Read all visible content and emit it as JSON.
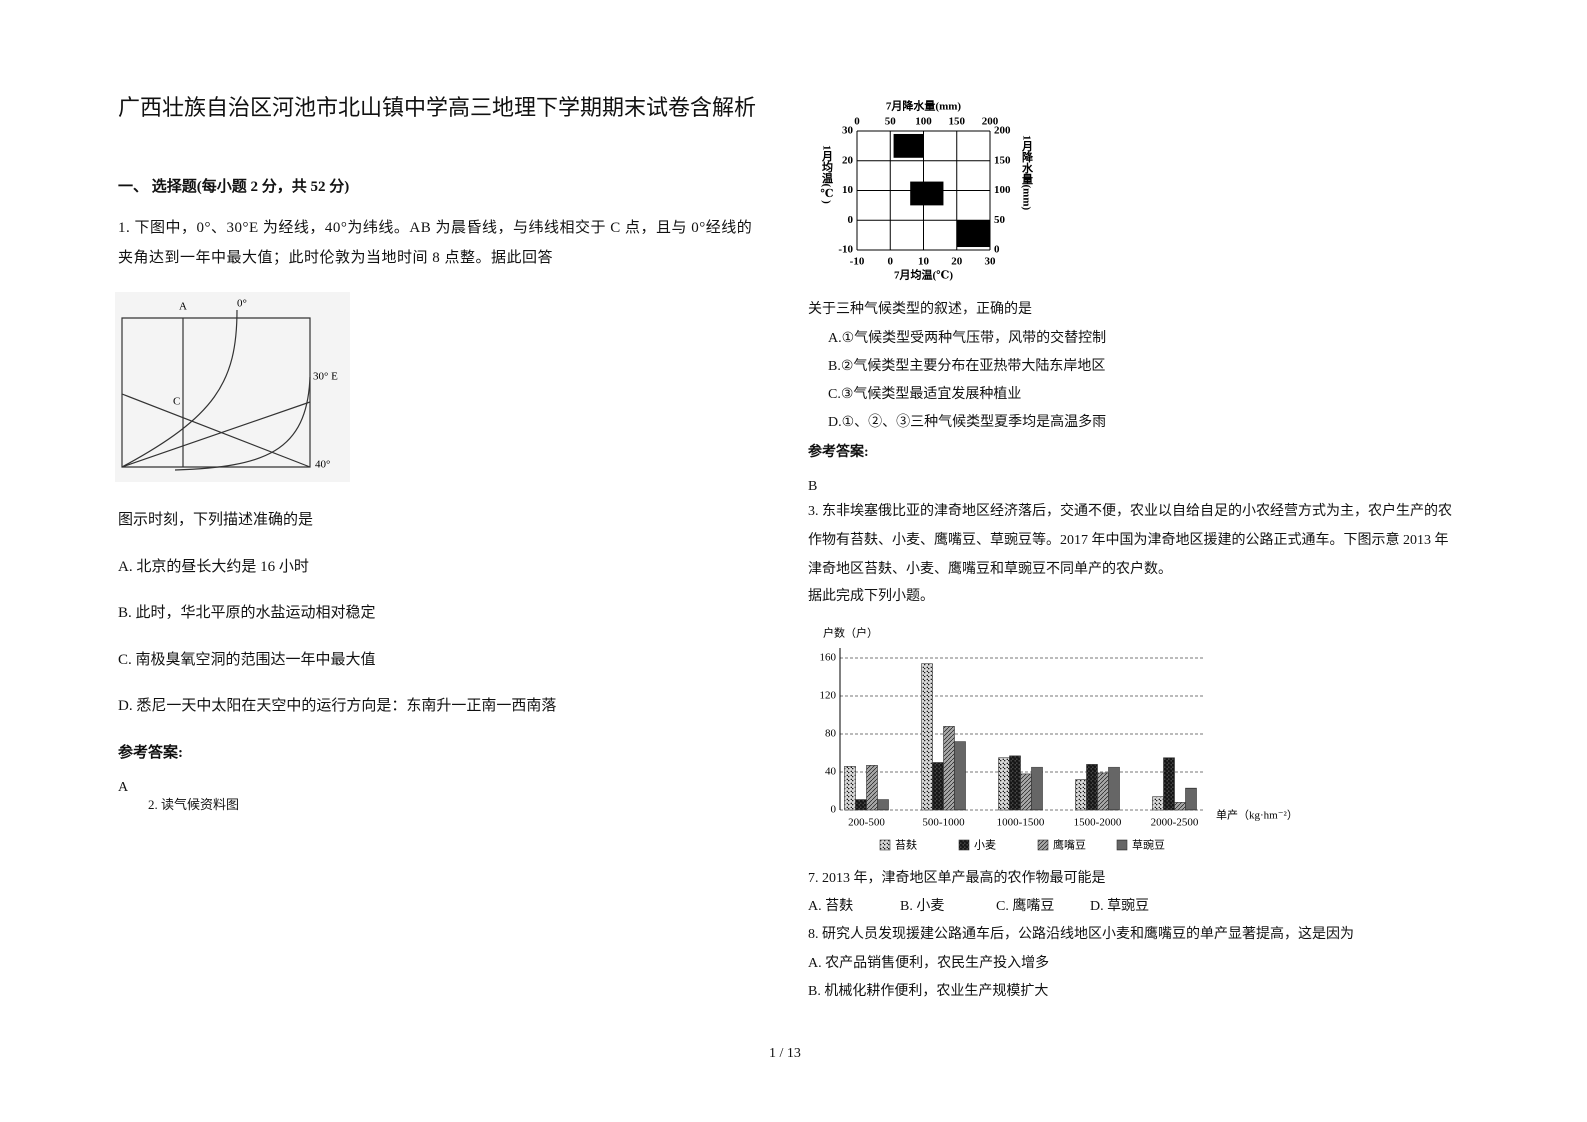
{
  "header": {
    "title": "广西壮族自治区河池市北山镇中学高三地理下学期期末试卷含解析"
  },
  "section": "一、 选择题(每小题 2 分，共 52 分)",
  "q1": {
    "stem": "1. 下图中，0°、30°E 为经线，40°为纬线。AB 为晨昏线，与纬线相交于 C 点，且与 0°经线的夹角达到一年中最大值；此时伦敦为当地时间 8 点整。据此回答",
    "figure_labels": [
      "A",
      "0°",
      "30° E",
      "C",
      "40°"
    ],
    "question": "图示时刻，下列描述准确的是",
    "options": [
      "A. 北京的昼长大约是 16 小时",
      "B. 此时，华北平原的水盐运动相对稳定",
      "C. 南极臭氧空洞的范围达一年中最大值",
      "D. 悉尼一天中太阳在天空中的运行方向是：东南升一正南一西南落"
    ],
    "answer_label": "参考答案:",
    "answer": "A"
  },
  "q2": {
    "intro": "2. 读气候资料图",
    "figure": {
      "type": "region",
      "x_label": "7月均温(℃)",
      "x2_label": "7月降水量(mm)",
      "y_label": "1月均温(℃)",
      "y2_label": "1月降水量(mm)",
      "xlim": [
        -10,
        30
      ],
      "xticks": [
        -10,
        0,
        10,
        20,
        30
      ],
      "x2lim": [
        0,
        200
      ],
      "x2ticks": [
        0,
        50,
        100,
        150,
        200
      ],
      "ylim": [
        -10,
        30
      ],
      "yticks": [
        -10,
        0,
        10,
        20,
        30
      ],
      "y2lim": [
        0,
        200
      ],
      "y2ticks": [
        0,
        50,
        100,
        150,
        200
      ],
      "color": "#000000",
      "grid": true,
      "regions": [
        {
          "x": [
            1,
            10
          ],
          "y": [
            21,
            29
          ]
        },
        {
          "x": [
            6,
            16
          ],
          "y": [
            5,
            13
          ]
        },
        {
          "x": [
            20,
            30
          ],
          "y": [
            -9,
            0
          ]
        }
      ]
    },
    "question": "关于三种气候类型的叙述，正确的是",
    "options": [
      "A.①气候类型受两种气压带，风带的交替控制",
      "B.②气候类型主要分布在亚热带大陆东岸地区",
      "C.③气候类型最适宜发展种植业",
      "D.①、②、③三种气候类型夏季均是高温多雨"
    ],
    "answer_label": "参考答案:",
    "answer": "B"
  },
  "q3": {
    "stem": "3. 东非埃塞俄比亚的津奇地区经济落后，交通不便，农业以自给自足的小农经营方式为主，农户生产的农作物有苔麸、小麦、鹰嘴豆、草豌豆等。2017 年中国为津奇地区援建的公路正式通车。下图示意 2013 年津奇地区苔麸、小麦、鹰嘴豆和草豌豆不同单产的农户数。",
    "prompt": "据此完成下列小题。",
    "chart": {
      "type": "bar",
      "y_label": "户数（户）",
      "x_label": "单产（kg·hm⁻²）",
      "categories": [
        "200-500",
        "500-1000",
        "1000-1500",
        "1500-2000",
        "2000-2500"
      ],
      "series": [
        {
          "name": "苔麸",
          "color": "#d8d8d8",
          "values": [
            46,
            154,
            55,
            32,
            14
          ]
        },
        {
          "name": "小麦",
          "color": "#444444",
          "values": [
            11,
            50,
            57,
            48,
            55
          ]
        },
        {
          "name": "鹰嘴豆",
          "color": "#a8a8a8",
          "values": [
            47,
            88,
            38,
            39,
            8
          ]
        },
        {
          "name": "草豌豆",
          "color": "#888888",
          "values": [
            11,
            72,
            45,
            45,
            23
          ]
        }
      ],
      "ylim": [
        0,
        160
      ],
      "yticks": [
        0,
        40,
        80,
        120,
        160
      ],
      "grid": true
    },
    "q7": "7. 2013 年，津奇地区单产最高的农作物最可能是",
    "q7_options": [
      "A. 苔麸",
      "B. 小麦",
      "C. 鹰嘴豆",
      "D. 草豌豆"
    ],
    "q8": "8. 研究人员发现援建公路通车后，公路沿线地区小麦和鹰嘴豆的单产显著提高，这是因为",
    "q8_options": [
      "A. 农产品销售便利，农民生产投入增多",
      "B. 机械化耕作便利，农业生产规模扩大"
    ]
  },
  "footer": {
    "page": "1 / 13"
  }
}
